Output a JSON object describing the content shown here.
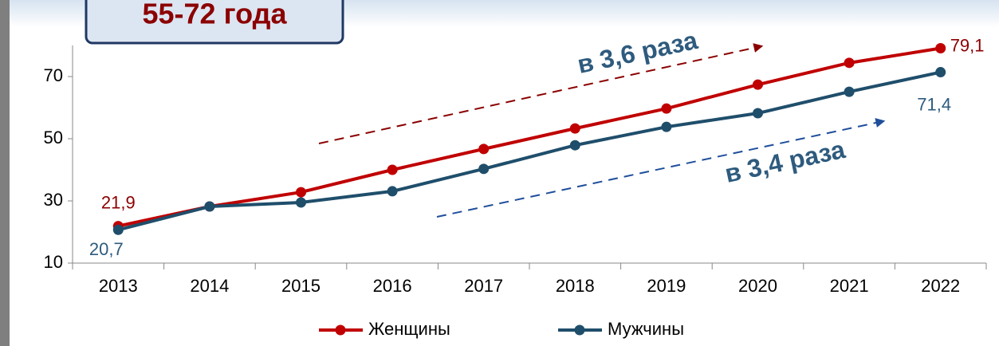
{
  "chart_data": {
    "type": "line",
    "title": "55-72 года",
    "categories": [
      "2013",
      "2014",
      "2015",
      "2016",
      "2017",
      "2018",
      "2019",
      "2020",
      "2021",
      "2022"
    ],
    "series": [
      {
        "name": "Женщины",
        "color": "#c00000",
        "values": [
          21.9,
          28.2,
          32.8,
          40.0,
          46.7,
          53.3,
          59.7,
          67.4,
          74.4,
          79.1
        ],
        "value_labels": [
          "21,9",
          null,
          null,
          null,
          null,
          null,
          null,
          null,
          null,
          "79,1"
        ]
      },
      {
        "name": "Мужчины",
        "color": "#1f4e6b",
        "values": [
          20.7,
          28.2,
          29.5,
          33.1,
          40.3,
          47.9,
          53.8,
          58.2,
          65.1,
          71.4
        ],
        "value_labels": [
          "20,7",
          null,
          null,
          null,
          null,
          null,
          null,
          null,
          null,
          "71,4"
        ]
      }
    ],
    "annotations": [
      "в 3,6 раза",
      "в 3,4 раза"
    ],
    "ylim": [
      10,
      80
    ],
    "yticks": [
      10,
      30,
      50,
      70
    ],
    "grid": false,
    "legend": "bottom"
  }
}
